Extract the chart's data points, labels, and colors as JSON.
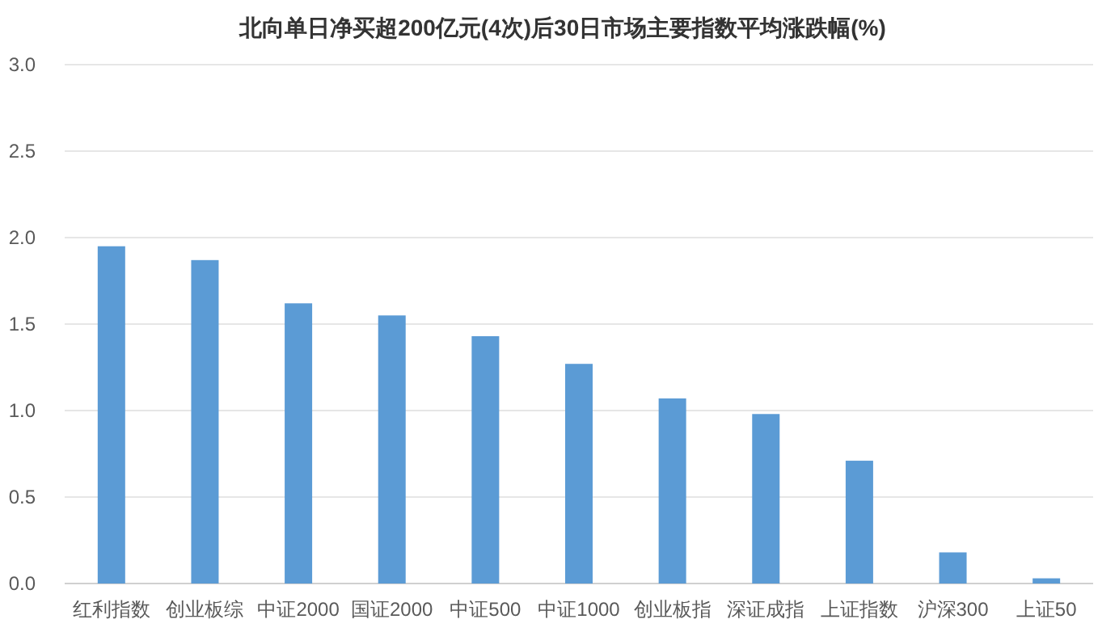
{
  "chart_data": {
    "type": "bar",
    "title": "北向单日净买超200亿元(4次)后30日市场主要指数平均涨跌幅(%)",
    "categories": [
      "红利指数",
      "创业板综",
      "中证2000",
      "国证2000",
      "中证500",
      "中证1000",
      "创业板指",
      "深证成指",
      "上证指数",
      "沪深300",
      "上证50"
    ],
    "values": [
      1.95,
      1.87,
      1.62,
      1.55,
      1.43,
      1.27,
      1.07,
      0.98,
      0.71,
      0.18,
      0.03
    ],
    "color": "#5b9bd5",
    "ylim": [
      0,
      3
    ],
    "yticks": [
      {
        "value": 0,
        "label": "0.0"
      },
      {
        "value": 0.5,
        "label": "0.5"
      },
      {
        "value": 1,
        "label": "1.0"
      },
      {
        "value": 1.5,
        "label": "1.5"
      },
      {
        "value": 2,
        "label": "2.0"
      },
      {
        "value": 2.5,
        "label": "2.5"
      },
      {
        "value": 3,
        "label": "3.0"
      }
    ],
    "grid": "y"
  }
}
